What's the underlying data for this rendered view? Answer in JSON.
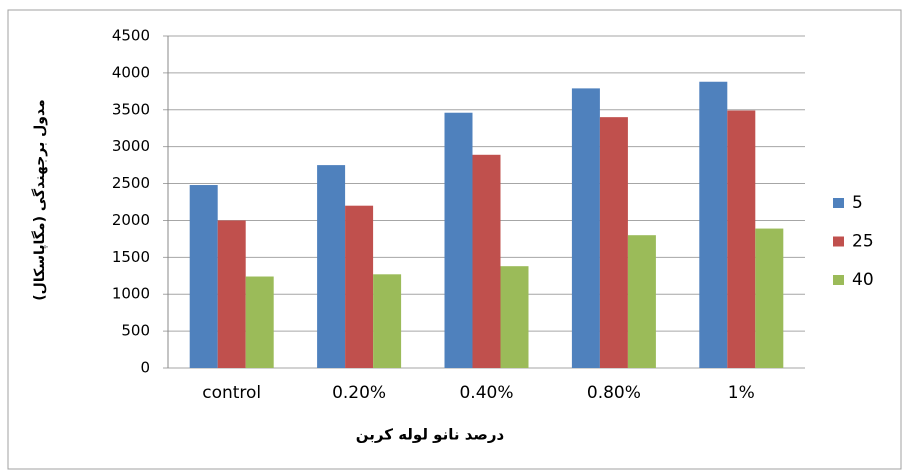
{
  "chart_data": {
    "type": "bar",
    "x_label": "درصد نانو لوله کربن",
    "y_label": "مدول برجهندگی (مگاپاسکال)",
    "categories": [
      "control",
      "0.20%",
      "0.40%",
      "0.80%",
      "1%"
    ],
    "series": [
      {
        "name": "5",
        "color": "#4f81bd",
        "values": [
          2480,
          2750,
          3460,
          3790,
          3880
        ]
      },
      {
        "name": "25",
        "color": "#c0504d",
        "values": [
          2000,
          2200,
          2890,
          3400,
          3490
        ]
      },
      {
        "name": "40",
        "color": "#9bbb59",
        "values": [
          1240,
          1270,
          1380,
          1800,
          1890
        ]
      }
    ],
    "ylim": [
      0,
      4500
    ],
    "yticks": [
      0,
      500,
      1000,
      1500,
      2000,
      2500,
      3000,
      3500,
      4000,
      4500
    ],
    "grid": true,
    "legend": "right"
  }
}
